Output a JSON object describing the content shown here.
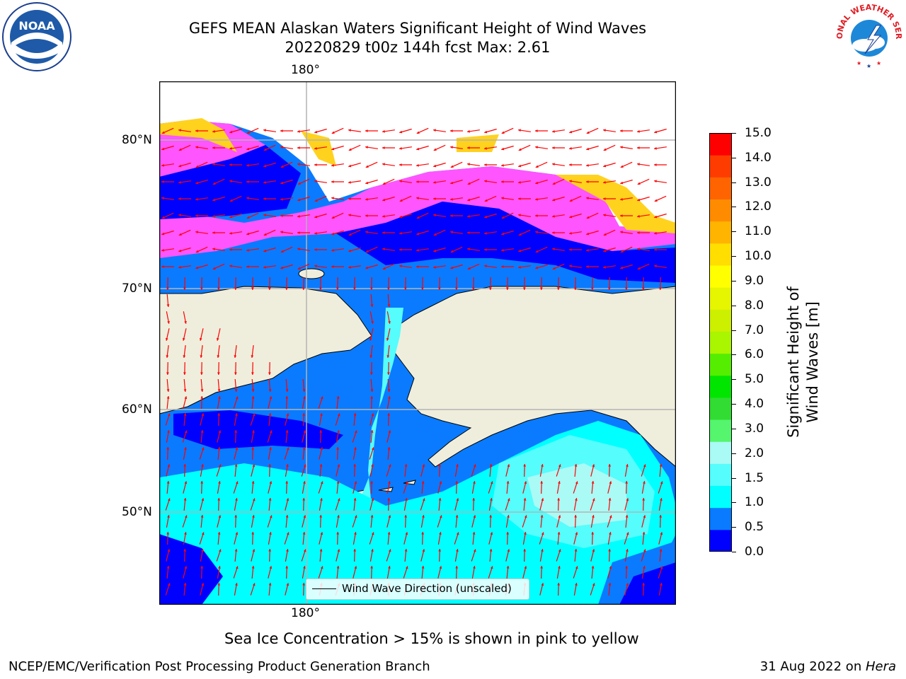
{
  "header": {
    "title_line1": "GEFS MEAN Alaskan Waters Significant Height of Wind Waves",
    "title_line2": "20220829 t00z 144h fcst   Max: 2.61"
  },
  "logos": {
    "left": "NOAA",
    "right": "NATIONAL WEATHER SERVICE"
  },
  "map": {
    "lon_label_top": "180°",
    "lon_label_bottom": "180°",
    "lat_labels": [
      "80°N",
      "70°N",
      "60°N",
      "50°N"
    ],
    "legend_text": "Wind Wave Direction (unscaled)",
    "colors": {
      "land": "#efeedc",
      "ocean_0": "#0000ff",
      "ocean_05": "#0a7bff",
      "ocean_1": "#00ffff",
      "ocean_15": "#55fdfd",
      "ocean_2": "#aafaf5",
      "ice_pink": "#ff55ff",
      "ice_yellow": "#ffd21e",
      "arrow": "#ff0000"
    }
  },
  "colorbar": {
    "label": "Significant Height of Wind Waves [m]",
    "ticks": [
      "15.0",
      "14.0",
      "13.0",
      "12.0",
      "11.0",
      "10.0",
      "9.0",
      "8.0",
      "7.0",
      "6.0",
      "5.0",
      "4.0",
      "3.0",
      "2.0",
      "1.5",
      "1.0",
      "0.5",
      "0.0"
    ],
    "colors": [
      "#0000ff",
      "#0a7bff",
      "#00ffff",
      "#55fdfd",
      "#aafaf5",
      "#55f56e",
      "#32dc32",
      "#00e600",
      "#55ee00",
      "#aaf500",
      "#ccf000",
      "#e6f500",
      "#ffff00",
      "#ffde00",
      "#ffb400",
      "#ff8c00",
      "#ff6400",
      "#ff3c00",
      "#ff0000"
    ]
  },
  "footer": {
    "note": "Sea Ice Concentration > 15% is shown in pink to yellow",
    "left": "NCEP/EMC/Verification Post Processing Product Generation Branch",
    "right_date": "31 Aug 2022 on ",
    "right_machine": "Hera"
  }
}
